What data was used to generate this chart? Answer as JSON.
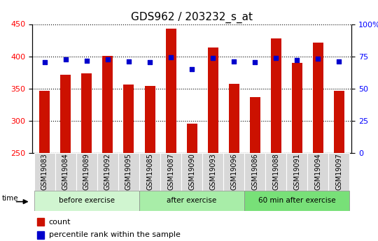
{
  "title": "GDS962 / 203232_s_at",
  "samples": [
    "GSM19083",
    "GSM19084",
    "GSM19089",
    "GSM19092",
    "GSM19095",
    "GSM19085",
    "GSM19087",
    "GSM19090",
    "GSM19093",
    "GSM19096",
    "GSM19086",
    "GSM19088",
    "GSM19091",
    "GSM19094",
    "GSM19097"
  ],
  "counts": [
    347,
    371,
    374,
    401,
    356,
    354,
    443,
    296,
    414,
    357,
    337,
    428,
    390,
    421,
    347
  ],
  "percentile_ranks": [
    70.5,
    72.5,
    71.5,
    72.5,
    71.0,
    70.5,
    74.5,
    65.0,
    73.5,
    71.0,
    70.5,
    73.5,
    72.0,
    73.0,
    71.0
  ],
  "groups": [
    {
      "label": "before exercise",
      "start": 0,
      "end": 5,
      "color": "#d0f5d0"
    },
    {
      "label": "after exercise",
      "start": 5,
      "end": 10,
      "color": "#a8eda8"
    },
    {
      "label": "60 min after exercise",
      "start": 10,
      "end": 15,
      "color": "#78e078"
    }
  ],
  "ylim_left": [
    250,
    450
  ],
  "ylim_right": [
    0,
    100
  ],
  "yticks_left": [
    250,
    300,
    350,
    400,
    450
  ],
  "yticks_right": [
    0,
    25,
    50,
    75,
    100
  ],
  "bar_color": "#cc1100",
  "dot_color": "#0000cc",
  "plot_bg_color": "#ffffff",
  "tick_bg_color": "#d8d8d8",
  "title_fontsize": 11,
  "tick_fontsize": 7,
  "axis_fontsize": 8,
  "legend_count_label": "count",
  "legend_percentile_label": "percentile rank within the sample"
}
